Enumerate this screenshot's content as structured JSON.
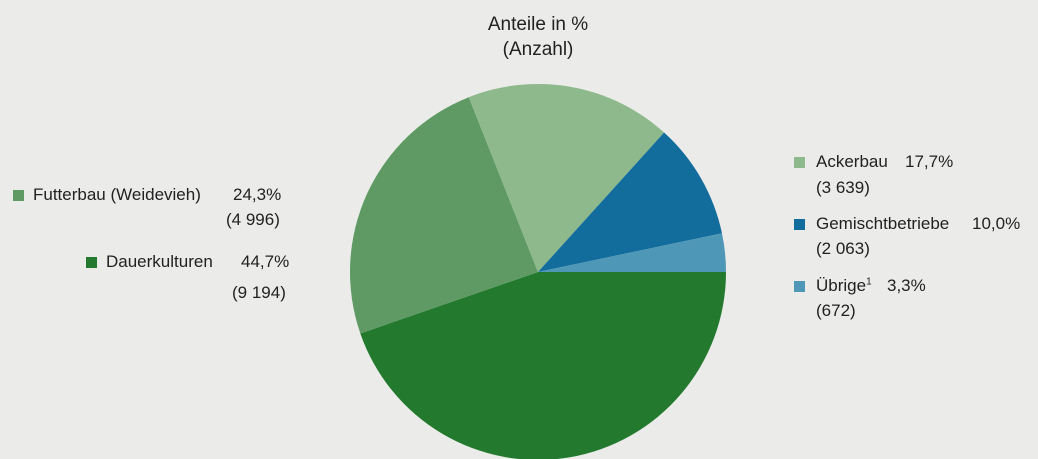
{
  "chart_data": {
    "type": "pie",
    "title_lines": [
      "Anteile in %",
      "(Anzahl)"
    ],
    "slices": [
      {
        "name": "Dauerkulturen",
        "value": 44.7,
        "percent_label": "44,7%",
        "count_label": "(9 194)",
        "color": "#237a2e"
      },
      {
        "name": "Futterbau (Weidevieh)",
        "value": 24.3,
        "percent_label": "24,3%",
        "count_label": "(4 996)",
        "color": "#5f9a64"
      },
      {
        "name": "Ackerbau",
        "value": 17.7,
        "percent_label": "17,7%",
        "count_label": "(3 639)",
        "color": "#8db98c"
      },
      {
        "name": "Gemischtbetriebe",
        "value": 10.0,
        "percent_label": "10,0%",
        "count_label": "(2 063)",
        "color": "#126d9c"
      },
      {
        "name": "Übrige",
        "footnote": "1",
        "value": 3.3,
        "percent_label": "3,3%",
        "count_label": "(672)",
        "color": "#4e97b7"
      }
    ]
  }
}
